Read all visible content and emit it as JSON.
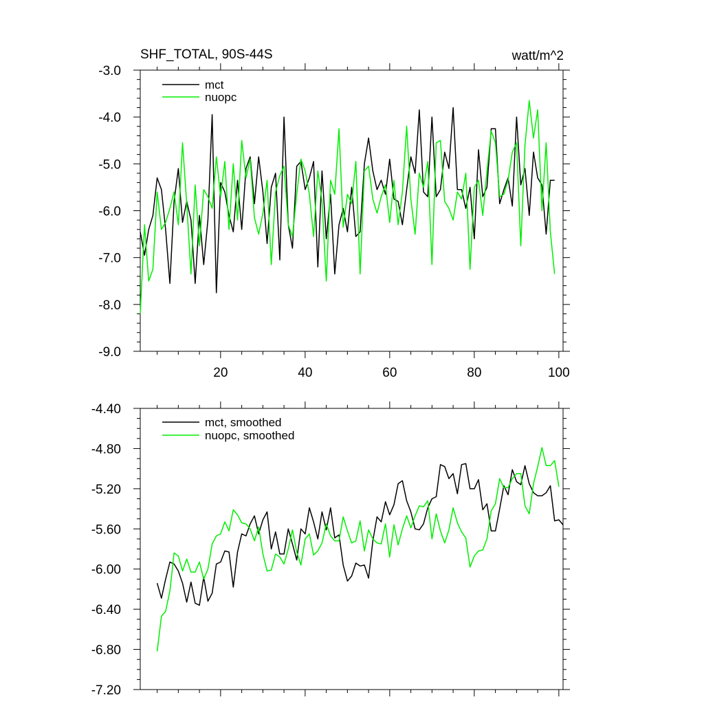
{
  "chart_data": [
    {
      "type": "line",
      "title": "SHF_TOTAL, 90S-44S",
      "units": "watt/m^2",
      "xlim": [
        1,
        101
      ],
      "ylim": [
        -9.0,
        -3.0
      ],
      "x_ticks": [
        20,
        40,
        60,
        80,
        100
      ],
      "x_tick_labels": [
        "20",
        "40",
        "60",
        "80",
        "100"
      ],
      "y_ticks": [
        -3.0,
        -4.0,
        -5.0,
        -6.0,
        -7.0,
        -8.0,
        -9.0
      ],
      "y_tick_labels": [
        "-3.0",
        "-4.0",
        "-5.0",
        "-6.0",
        "-7.0",
        "-8.0",
        "-9.0"
      ],
      "x_start": 1,
      "series": [
        {
          "name": "mct",
          "color": "#000000",
          "values": [
            -6.45,
            -6.95,
            -6.4,
            -6.1,
            -5.3,
            -5.55,
            -6.4,
            -7.55,
            -5.8,
            -5.1,
            -6.25,
            -5.8,
            -6.2,
            -7.55,
            -6.1,
            -7.15,
            -6.2,
            -3.95,
            -7.75,
            -5.4,
            -5.6,
            -6.1,
            -6.45,
            -5.35,
            -6.4,
            -5.1,
            -4.85,
            -5.85,
            -4.85,
            -5.6,
            -6.7,
            -5.5,
            -5.2,
            -7.05,
            -4.0,
            -6.3,
            -6.8,
            -5.05,
            -4.95,
            -5.55,
            -5.3,
            -4.95,
            -7.2,
            -5.15,
            -6.6,
            -5.65,
            -7.35,
            -6.3,
            -5.95,
            -6.45,
            -5.5,
            -6.55,
            -6.45,
            -5.0,
            -4.45,
            -5.15,
            -5.55,
            -5.35,
            -5.65,
            -4.9,
            -5.75,
            -5.8,
            -6.3,
            -5.55,
            -4.85,
            -5.2,
            -3.85,
            -5.6,
            -5.7,
            -4.0,
            -5.7,
            -5.55,
            -4.75,
            -5.1,
            -3.8,
            -5.55,
            -5.55,
            -5.95,
            -5.5,
            -6.6,
            -4.7,
            -5.7,
            -5.5,
            -4.25,
            -4.25,
            -5.85,
            -5.55,
            -5.3,
            -5.9,
            -4.0,
            -5.45,
            -5.1,
            -6.1,
            -4.75,
            -5.3,
            -5.45,
            -6.5,
            -5.35,
            -5.35
          ]
        },
        {
          "name": "nuopc",
          "color": "#00ee00",
          "values": [
            -8.2,
            -6.3,
            -7.5,
            -7.25,
            -5.6,
            -6.4,
            -6.25,
            -5.95,
            -5.6,
            -6.3,
            -4.55,
            -5.85,
            -7.35,
            -5.45,
            -6.75,
            -5.55,
            -5.7,
            -5.95,
            -4.85,
            -5.7,
            -4.95,
            -6.4,
            -5.0,
            -6.2,
            -4.5,
            -5.3,
            -4.9,
            -6.15,
            -6.5,
            -6.05,
            -5.35,
            -7.15,
            -5.6,
            -5.25,
            -5.05,
            -6.3,
            -6.55,
            -5.65,
            -4.9,
            -5.15,
            -5.65,
            -6.55,
            -5.15,
            -5.8,
            -7.5,
            -5.35,
            -5.65,
            -4.25,
            -6.35,
            -5.65,
            -5.85,
            -4.95,
            -7.35,
            -5.15,
            -5.05,
            -5.75,
            -6.05,
            -5.7,
            -5.45,
            -6.25,
            -5.35,
            -6.3,
            -5.6,
            -4.2,
            -5.75,
            -6.5,
            -5.2,
            -5.5,
            -4.95,
            -7.15,
            -4.55,
            -4.5,
            -5.8,
            -5.95,
            -6.2,
            -5.6,
            -5.75,
            -5.2,
            -7.25,
            -5.5,
            -5.35,
            -6.1,
            -5.15,
            -4.3,
            -4.55,
            -5.7,
            -5.65,
            -5.35,
            -4.75,
            -4.55,
            -6.75,
            -4.6,
            -3.65,
            -4.45,
            -3.85,
            -6.0,
            -4.55,
            -6.45,
            -7.35
          ]
        }
      ],
      "legend": [
        "mct",
        "nuopc"
      ]
    },
    {
      "type": "line",
      "xlim": [
        1,
        101
      ],
      "ylim": [
        -7.2,
        -4.4
      ],
      "x_ticks": [
        20,
        40,
        60,
        80,
        100
      ],
      "y_ticks": [
        -4.4,
        -4.8,
        -5.2,
        -5.6,
        -6.0,
        -6.4,
        -6.8,
        -7.2
      ],
      "y_tick_labels": [
        "-4.40",
        "-4.80",
        "-5.20",
        "-5.60",
        "-6.00",
        "-6.40",
        "-6.80",
        "-7.20"
      ],
      "x_start": 5,
      "series": [
        {
          "name": "mct, smoothed",
          "color": "#000000",
          "values": [
            -6.14,
            -6.29,
            -6.1,
            -5.93,
            -5.95,
            -6.02,
            -6.14,
            -6.33,
            -6.13,
            -6.34,
            -6.36,
            -6.08,
            -6.32,
            -6.24,
            -5.95,
            -5.93,
            -5.82,
            -5.83,
            -6.18,
            -5.83,
            -5.65,
            -5.67,
            -5.55,
            -5.47,
            -5.65,
            -5.51,
            -5.43,
            -5.8,
            -5.63,
            -5.85,
            -5.85,
            -5.6,
            -5.75,
            -5.91,
            -5.6,
            -5.65,
            -5.39,
            -5.53,
            -5.7,
            -5.43,
            -5.61,
            -5.39,
            -5.69,
            -5.66,
            -5.96,
            -6.12,
            -6.07,
            -5.94,
            -5.97,
            -5.96,
            -6.09,
            -5.72,
            -5.48,
            -5.53,
            -5.33,
            -5.46,
            -5.36,
            -5.15,
            -5.12,
            -5.32,
            -5.43,
            -5.6,
            -5.61,
            -5.55,
            -5.39,
            -5.3,
            -5.28,
            -4.96,
            -4.98,
            -5.1,
            -5.05,
            -5.25,
            -4.96,
            -4.95,
            -5.2,
            -5.2,
            -5.11,
            -5.41,
            -5.35,
            -5.62,
            -5.62,
            -5.4,
            -5.17,
            -5.26,
            -5.01,
            -5.13,
            -5.16,
            -4.97,
            -5.15,
            -5.24,
            -5.27,
            -5.27,
            -5.24,
            -5.17,
            -5.52,
            -5.51,
            -5.56
          ]
        },
        {
          "name": "nuopc, smoothed",
          "color": "#00ee00",
          "values": [
            -6.82,
            -6.47,
            -6.42,
            -6.22,
            -5.84,
            -5.87,
            -6.02,
            -5.9,
            -6.03,
            -6.03,
            -5.93,
            -6.1,
            -6.0,
            -5.75,
            -5.67,
            -5.65,
            -5.53,
            -5.62,
            -5.41,
            -5.46,
            -5.54,
            -5.55,
            -5.6,
            -5.72,
            -5.58,
            -5.85,
            -6.02,
            -6.01,
            -5.85,
            -5.88,
            -5.95,
            -5.8,
            -5.61,
            -5.83,
            -5.96,
            -5.7,
            -5.65,
            -5.86,
            -5.82,
            -5.74,
            -5.55,
            -5.67,
            -5.72,
            -5.72,
            -5.48,
            -5.62,
            -5.74,
            -5.72,
            -5.52,
            -5.82,
            -5.61,
            -5.7,
            -5.74,
            -5.75,
            -5.55,
            -5.88,
            -5.56,
            -5.76,
            -5.6,
            -5.47,
            -5.59,
            -5.47,
            -5.37,
            -5.38,
            -5.32,
            -5.7,
            -5.45,
            -5.62,
            -5.74,
            -5.61,
            -5.39,
            -5.54,
            -5.63,
            -5.69,
            -5.98,
            -5.87,
            -5.82,
            -5.81,
            -5.7,
            -5.42,
            -5.35,
            -5.1,
            -5.19,
            -5.19,
            -5.1,
            -5.05,
            -5.05,
            -5.37,
            -5.45,
            -5.15,
            -4.98,
            -4.79,
            -4.97,
            -4.97,
            -4.92,
            -5.18
          ]
        }
      ],
      "legend": [
        "mct, smoothed",
        "nuopc, smoothed"
      ]
    }
  ]
}
